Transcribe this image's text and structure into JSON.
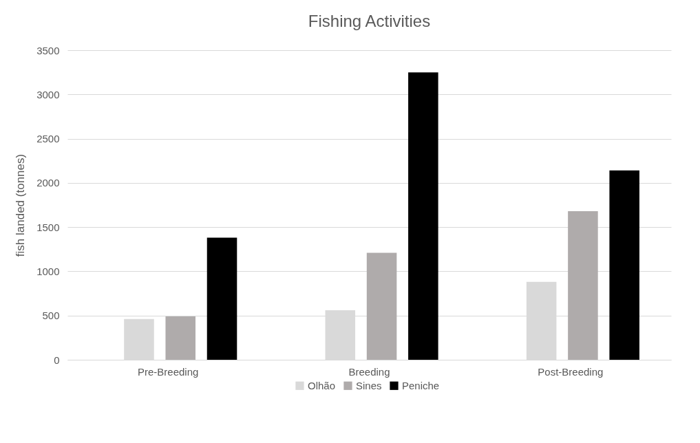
{
  "chart_data": {
    "type": "bar",
    "title": "Fishing Activities",
    "ylabel": "fish landed (tonnes)",
    "categories": [
      "Pre-Breeding",
      "Breeding",
      "Post-Breeding"
    ],
    "series": [
      {
        "name": "Olhão",
        "color": "#d9d9d9",
        "values": [
          460,
          560,
          880
        ]
      },
      {
        "name": "Sines",
        "color": "#afabab",
        "values": [
          490,
          1210,
          1680
        ]
      },
      {
        "name": "Peniche",
        "color": "#000000",
        "values": [
          1380,
          3250,
          2140
        ]
      }
    ],
    "ylim": [
      0,
      3500
    ],
    "yticks": [
      0,
      500,
      1000,
      1500,
      2000,
      2500,
      3000,
      3500
    ],
    "grid": "y",
    "legend": "bottom"
  }
}
